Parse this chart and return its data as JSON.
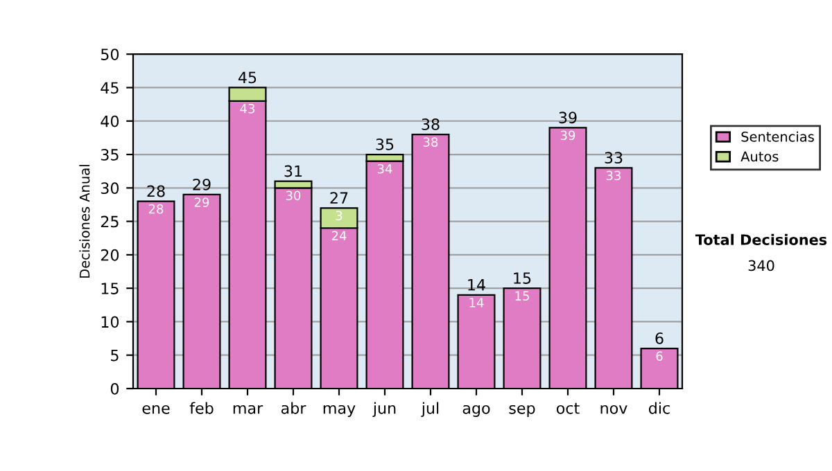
{
  "chart_data": {
    "type": "bar",
    "stacked": true,
    "ylabel": "Decisiones Anual",
    "categories": [
      "ene",
      "feb",
      "mar",
      "abr",
      "may",
      "jun",
      "jul",
      "ago",
      "sep",
      "oct",
      "nov",
      "dic"
    ],
    "series": [
      {
        "name": "Sentencias",
        "color": "#df7cc3",
        "values": [
          28,
          29,
          43,
          30,
          24,
          34,
          38,
          14,
          15,
          39,
          33,
          6
        ],
        "value_labels": [
          "28",
          "29",
          "43",
          "30",
          "24",
          "34",
          "38",
          "14",
          "15",
          "39",
          "33",
          "6"
        ]
      },
      {
        "name": "Autos",
        "color": "#c5e08f",
        "values": [
          null,
          null,
          2,
          1,
          3,
          1,
          null,
          null,
          null,
          null,
          null,
          null
        ],
        "value_labels": [
          null,
          null,
          null,
          null,
          "3",
          null,
          null,
          null,
          null,
          null,
          null,
          null
        ]
      }
    ],
    "totals": [
      "28",
      "29",
      "45",
      "31",
      "27",
      "35",
      "38",
      "14",
      "15",
      "39",
      "33",
      "6"
    ],
    "ylim": [
      0,
      50
    ],
    "yticks": [
      0,
      5,
      10,
      15,
      20,
      25,
      30,
      35,
      40,
      45,
      50
    ],
    "grid": "y",
    "legend": "right",
    "annotations": [
      "Total Decisiones",
      "340"
    ]
  }
}
